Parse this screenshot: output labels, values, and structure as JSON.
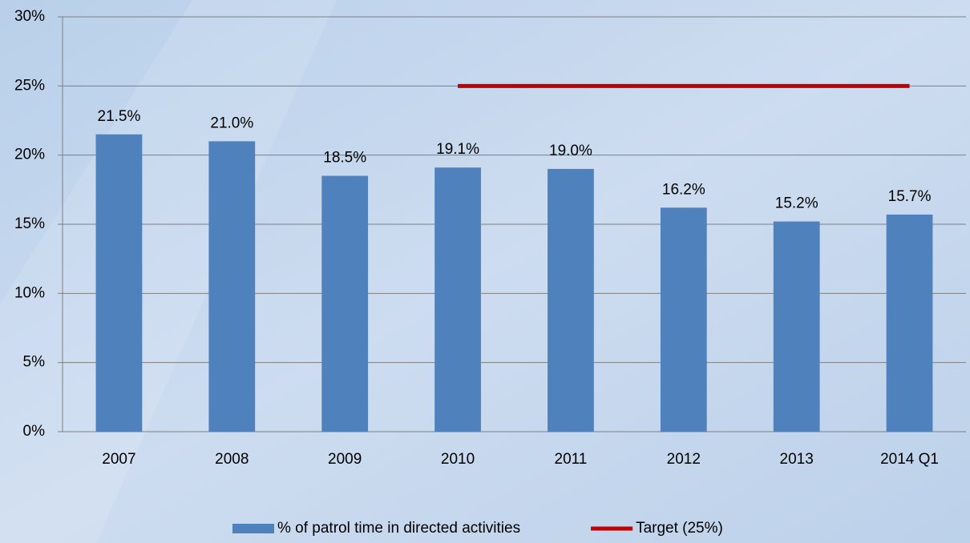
{
  "chart_data": {
    "type": "bar",
    "categories": [
      "2007",
      "2008",
      "2009",
      "2010",
      "2011",
      "2012",
      "2013",
      "2014 Q1"
    ],
    "series": [
      {
        "name": "% of patrol time in directed activities",
        "type": "bar",
        "color": "#4f81bd",
        "values": [
          21.5,
          21.0,
          18.5,
          19.1,
          19.0,
          16.2,
          15.2,
          15.7
        ],
        "value_labels": [
          "21.5%",
          "21.0%",
          "18.5%",
          "19.1%",
          "19.0%",
          "16.2%",
          "15.2%",
          "15.7%"
        ]
      },
      {
        "name": "Target (25%)",
        "type": "line",
        "color": "#c00000",
        "values": [
          null,
          null,
          null,
          25,
          25,
          25,
          25,
          25
        ]
      }
    ],
    "ylim": [
      0,
      30
    ],
    "yticks": [
      {
        "value": 0,
        "label": "0%"
      },
      {
        "value": 5,
        "label": "5%"
      },
      {
        "value": 10,
        "label": "10%"
      },
      {
        "value": 15,
        "label": "15%"
      },
      {
        "value": 20,
        "label": "20%"
      },
      {
        "value": 25,
        "label": "25%"
      },
      {
        "value": 30,
        "label": "30%"
      }
    ],
    "grid": true,
    "legend": "bottom"
  }
}
